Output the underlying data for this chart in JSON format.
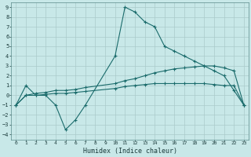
{
  "title": "",
  "xlabel": "Humidex (Indice chaleur)",
  "xlim": [
    -0.5,
    23.5
  ],
  "ylim": [
    -4.5,
    9.5
  ],
  "xticks": [
    0,
    1,
    2,
    3,
    4,
    5,
    6,
    7,
    8,
    9,
    10,
    11,
    12,
    13,
    14,
    15,
    16,
    17,
    18,
    19,
    20,
    21,
    22,
    23
  ],
  "yticks": [
    -4,
    -3,
    -2,
    -1,
    0,
    1,
    2,
    3,
    4,
    5,
    6,
    7,
    8,
    9
  ],
  "bg_color": "#c8e8e8",
  "line_color": "#1a6b6b",
  "grid_color": "#aacaca",
  "line1_x": [
    0,
    1,
    2,
    3,
    4,
    5,
    6,
    7,
    10,
    11,
    12,
    13,
    14,
    15,
    16,
    17,
    18,
    19,
    20,
    21,
    22,
    23
  ],
  "line1_y": [
    -1,
    1,
    0,
    0,
    -1,
    -3.5,
    -2.5,
    -1,
    4,
    9,
    8.5,
    7.5,
    7,
    5,
    4.5,
    4,
    3.5,
    3,
    2.5,
    2,
    0.5,
    -1
  ],
  "line2_x": [
    0,
    1,
    2,
    3,
    4,
    5,
    6,
    7,
    10,
    11,
    12,
    13,
    14,
    15,
    16,
    17,
    18,
    19,
    20,
    21,
    22,
    23
  ],
  "line2_y": [
    -1,
    0,
    0.2,
    0.3,
    0.5,
    0.5,
    0.6,
    0.8,
    1.2,
    1.5,
    1.7,
    2.0,
    2.3,
    2.5,
    2.7,
    2.8,
    2.9,
    3.0,
    3.0,
    2.8,
    2.5,
    -1
  ],
  "line3_x": [
    0,
    1,
    2,
    3,
    4,
    5,
    6,
    7,
    10,
    11,
    12,
    13,
    14,
    15,
    16,
    17,
    18,
    19,
    20,
    21,
    22,
    23
  ],
  "line3_y": [
    -1,
    0,
    0,
    0.1,
    0.2,
    0.2,
    0.3,
    0.4,
    0.7,
    0.9,
    1.0,
    1.1,
    1.2,
    1.2,
    1.2,
    1.2,
    1.2,
    1.2,
    1.1,
    1.0,
    1.0,
    -1
  ]
}
